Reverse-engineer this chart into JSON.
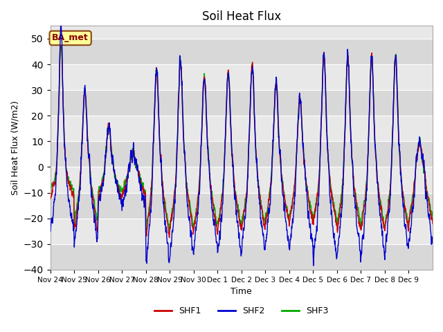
{
  "title": "Soil Heat Flux",
  "ylabel": "Soil Heat Flux (W/m2)",
  "xlabel": "Time",
  "ylim": [
    -40,
    55
  ],
  "background_color": "#ffffff",
  "plot_bg_color": "#e8e8e8",
  "grid_color": "#ffffff",
  "colors": {
    "SHF1": "#cc0000",
    "SHF2": "#0000cc",
    "SHF3": "#00aa00"
  },
  "legend_label": "BA_met",
  "legend_label_bg": "#ffff99",
  "legend_label_border": "#8b4513",
  "x_tick_labels": [
    "Nov 24",
    "Nov 25",
    "Nov 26",
    "Nov 27",
    "Nov 28",
    "Nov 29",
    "Nov 30",
    "Dec 1",
    "Dec 2",
    "Dec 3",
    "Dec 4",
    "Dec 5",
    "Dec 6",
    "Dec 7",
    "Dec 8",
    "Dec 9"
  ],
  "series_labels": [
    "SHF1",
    "SHF2",
    "SHF3"
  ],
  "yticks": [
    -40,
    -30,
    -20,
    -10,
    0,
    10,
    20,
    30,
    40,
    50
  ],
  "day_peaks": [
    48,
    30,
    17,
    6,
    38,
    42,
    35,
    37,
    40,
    33,
    27,
    44,
    43,
    43,
    43,
    10
  ],
  "day_night_shf1": [
    -12,
    -25,
    -12,
    -12,
    -28,
    -25,
    -25,
    -25,
    -25,
    -22,
    -22,
    -22,
    -25,
    -25,
    -25,
    -22
  ],
  "day_night_shf2": [
    -25,
    -30,
    -15,
    -15,
    -38,
    -35,
    -32,
    -34,
    -32,
    -30,
    -32,
    -38,
    -35,
    -34,
    -33,
    -30
  ],
  "day_night_shf3": [
    -10,
    -22,
    -10,
    -10,
    -25,
    -23,
    -23,
    -23,
    -23,
    -20,
    -20,
    -20,
    -23,
    -23,
    -23,
    -20
  ]
}
